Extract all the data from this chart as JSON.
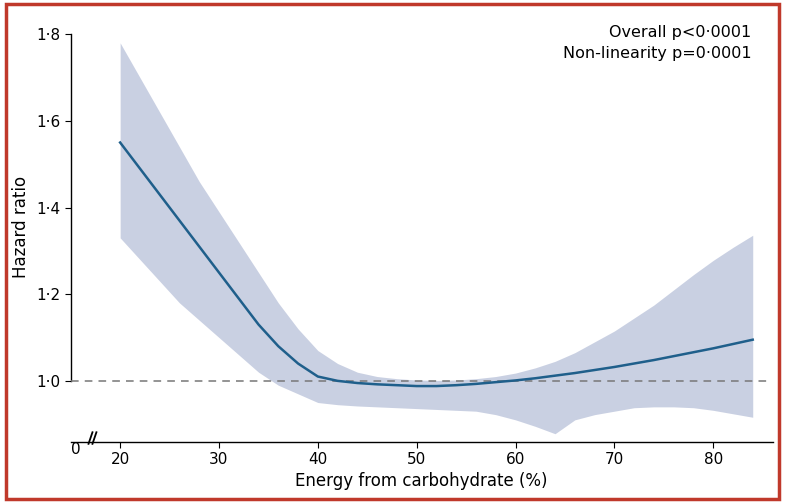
{
  "xlabel": "Energy from carbohydrate (%)",
  "ylabel": "Hazard ratio",
  "annotation_line1": "Overall p<0·0001",
  "annotation_line2": "Non-linearity p=0·0001",
  "xlim": [
    15,
    86
  ],
  "ylim": [
    0.86,
    1.85
  ],
  "yticks": [
    1.0,
    1.2,
    1.4,
    1.6,
    1.8
  ],
  "ytick_labels": [
    "1·0",
    "1·2",
    "1·4",
    "1·6",
    "1·8"
  ],
  "xticks": [
    20,
    30,
    40,
    50,
    60,
    70,
    80
  ],
  "xtick_labels": [
    "20",
    "30",
    "40",
    "50",
    "60",
    "70",
    "80"
  ],
  "line_color": "#1f5f8b",
  "ci_color": "#8090bb",
  "ci_alpha": 0.42,
  "dashed_line_y": 1.0,
  "dashed_color": "#777777",
  "border_color": "#c0392b",
  "background_color": "#ffffff",
  "x_data": [
    20,
    22,
    24,
    26,
    28,
    30,
    32,
    34,
    36,
    38,
    40,
    42,
    44,
    46,
    48,
    50,
    52,
    54,
    56,
    58,
    60,
    62,
    64,
    66,
    68,
    70,
    72,
    74,
    76,
    78,
    80,
    82,
    84
  ],
  "y_mean": [
    1.55,
    1.49,
    1.43,
    1.37,
    1.31,
    1.25,
    1.19,
    1.13,
    1.08,
    1.04,
    1.01,
    1.0,
    0.995,
    0.992,
    0.99,
    0.988,
    0.988,
    0.99,
    0.993,
    0.997,
    1.001,
    1.006,
    1.012,
    1.018,
    1.025,
    1.032,
    1.04,
    1.048,
    1.057,
    1.066,
    1.075,
    1.085,
    1.095
  ],
  "y_upper": [
    1.78,
    1.7,
    1.62,
    1.54,
    1.46,
    1.39,
    1.32,
    1.25,
    1.18,
    1.12,
    1.07,
    1.04,
    1.02,
    1.01,
    1.005,
    1.002,
    1.001,
    1.002,
    1.005,
    1.01,
    1.018,
    1.03,
    1.045,
    1.065,
    1.09,
    1.115,
    1.145,
    1.175,
    1.21,
    1.245,
    1.278,
    1.308,
    1.336
  ],
  "y_lower": [
    1.33,
    1.28,
    1.23,
    1.18,
    1.14,
    1.1,
    1.06,
    1.02,
    0.99,
    0.97,
    0.95,
    0.945,
    0.942,
    0.94,
    0.938,
    0.936,
    0.934,
    0.932,
    0.93,
    0.922,
    0.91,
    0.895,
    0.878,
    0.91,
    0.922,
    0.93,
    0.938,
    0.94,
    0.94,
    0.938,
    0.932,
    0.924,
    0.916
  ]
}
